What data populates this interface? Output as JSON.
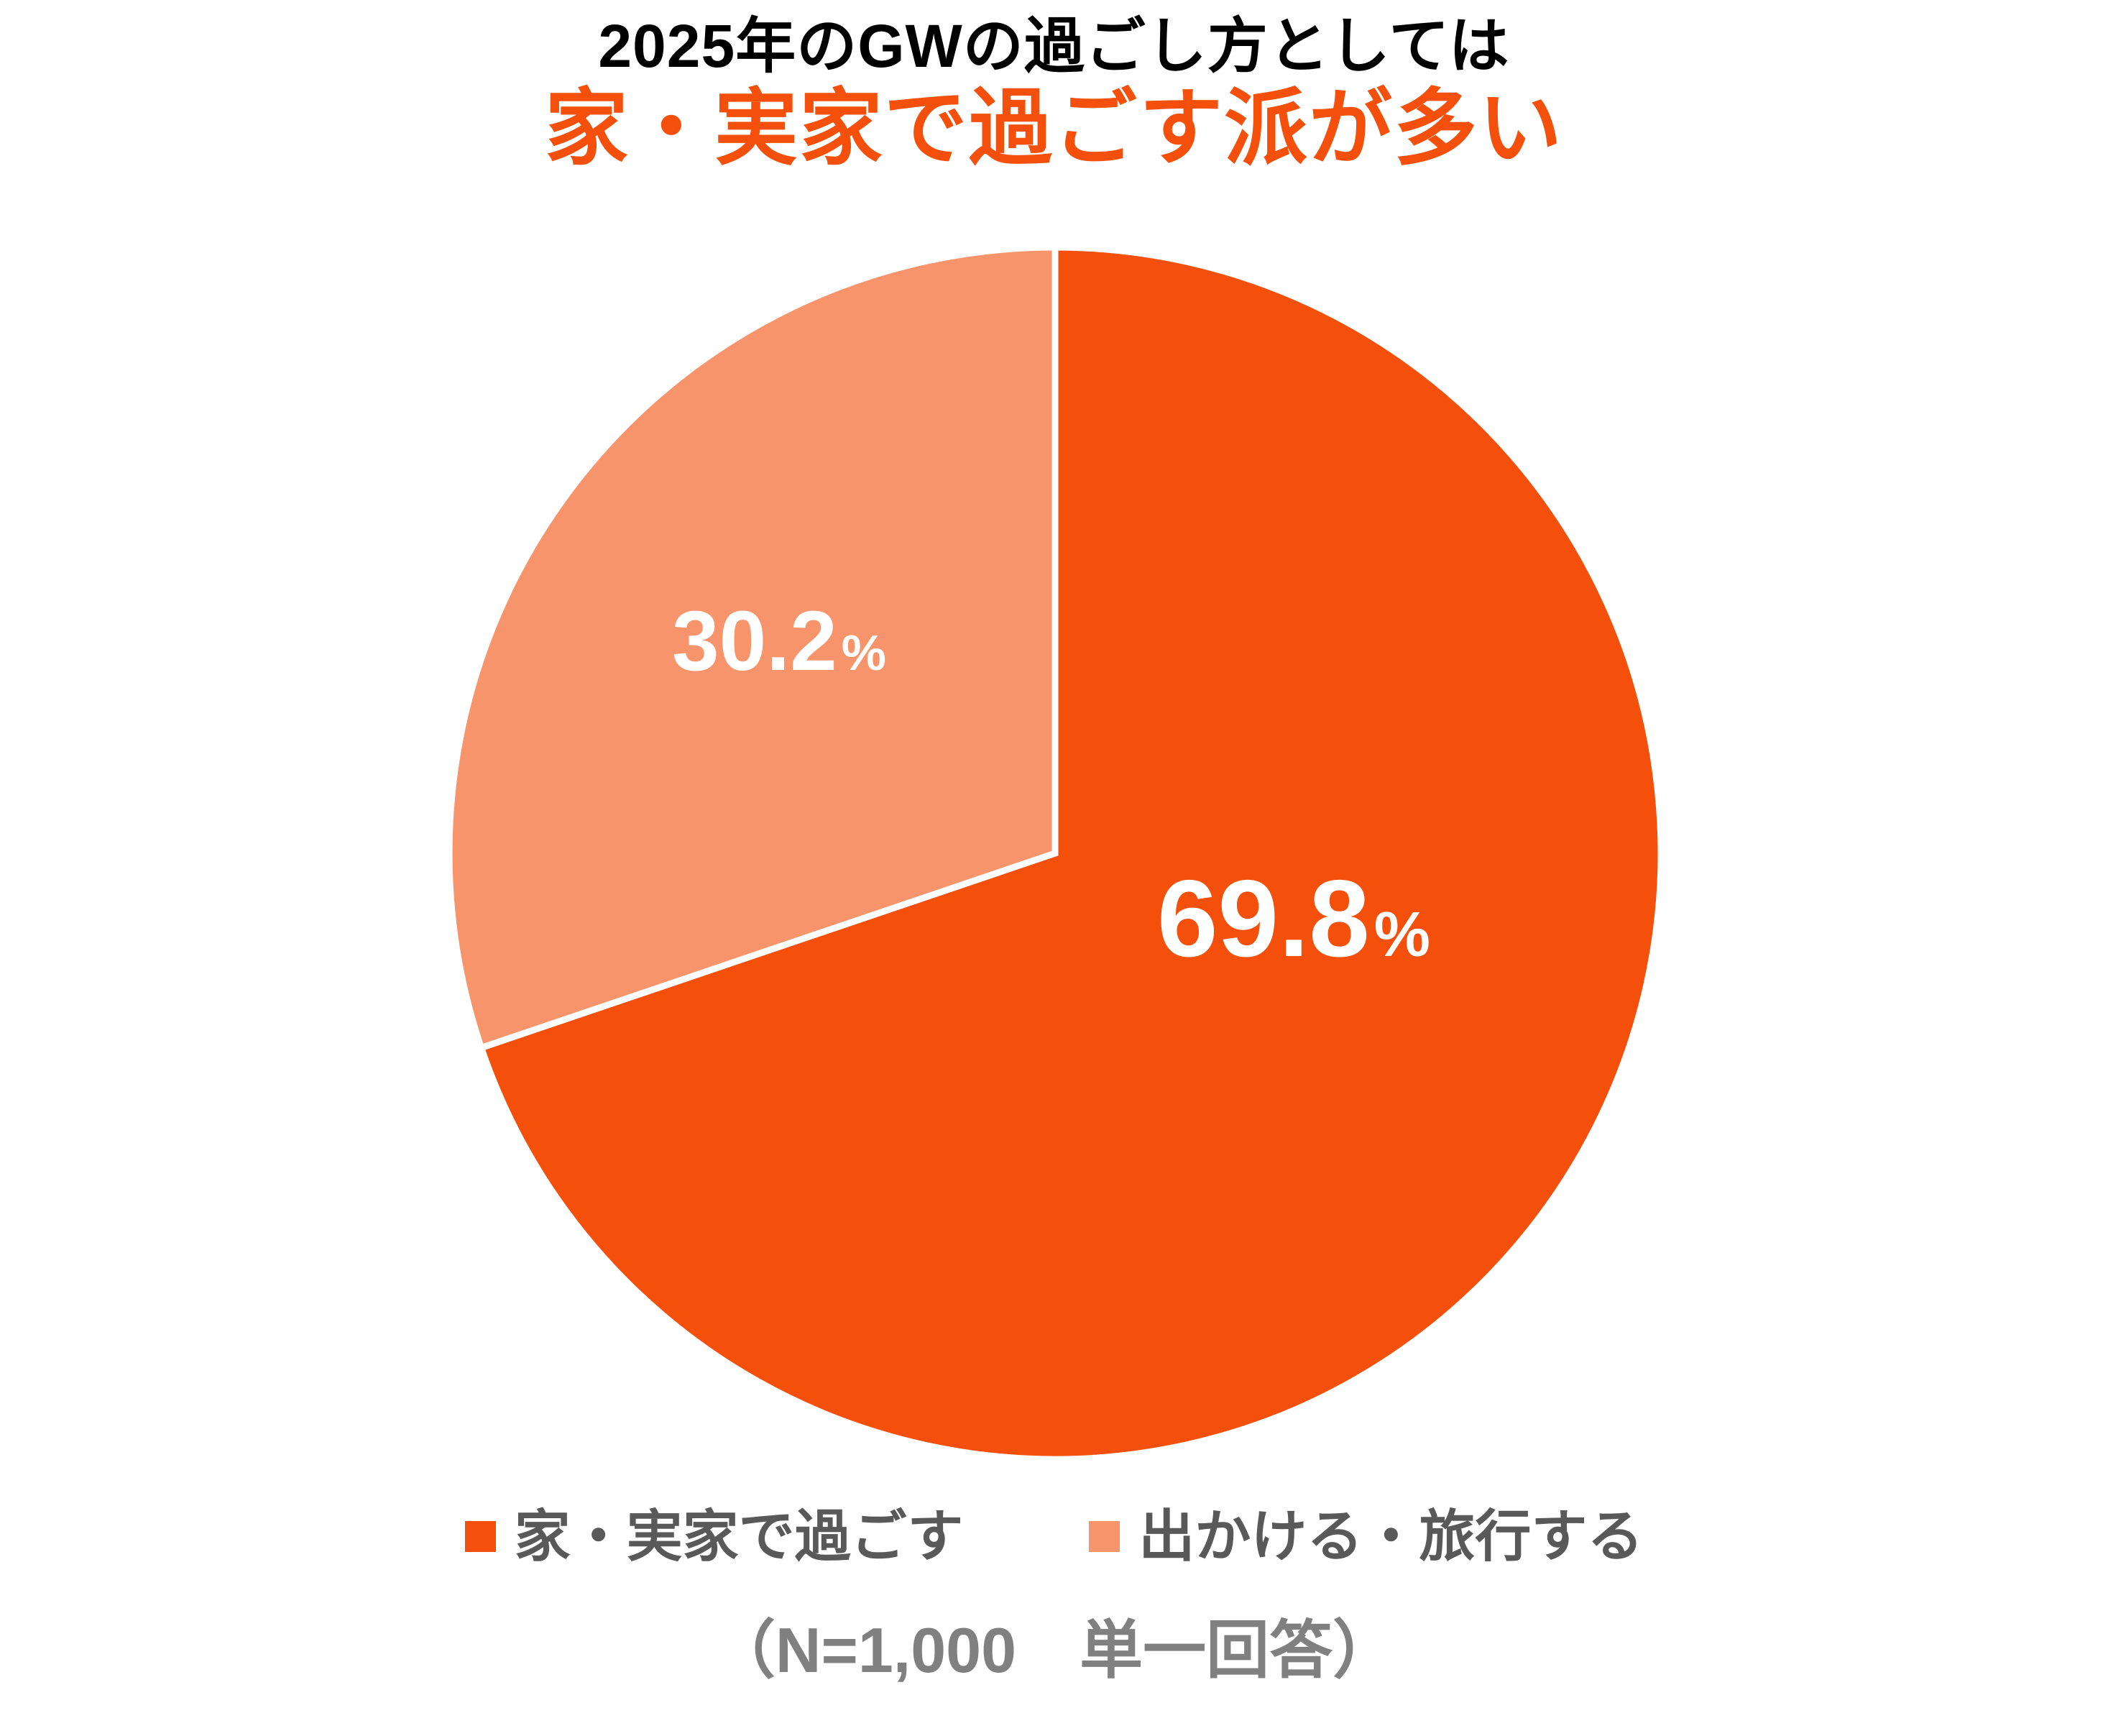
{
  "title": {
    "line1": "2025年のGWの過ごし方としては",
    "line2": "家・実家で過ごす派が多い"
  },
  "chart_data": {
    "type": "pie",
    "title": "2025年のGWの過ごし方としては 家・実家で過ごす派が多い",
    "categories": [
      "家・実家で過ごす",
      "出かける・旅行する"
    ],
    "values": [
      69.8,
      30.2
    ],
    "unit": "%",
    "colors": [
      "#F4500C",
      "#F8946C"
    ],
    "start_angle_deg": -90,
    "direction": "clockwise",
    "slice_border_color": "#FFFFFF",
    "legend_position": "bottom",
    "data_labels": [
      "69.8%",
      "30.2%"
    ]
  },
  "footer": {
    "note": "（N=1,000　単一回答）"
  },
  "colors": {
    "accent_dark_orange": "#F4500C",
    "accent_light_orange": "#F8946C",
    "title_text": "#000000",
    "legend_text": "#595959",
    "footer_text": "#808080",
    "label_text": "#FFFFFF",
    "background": "#FFFFFF"
  }
}
